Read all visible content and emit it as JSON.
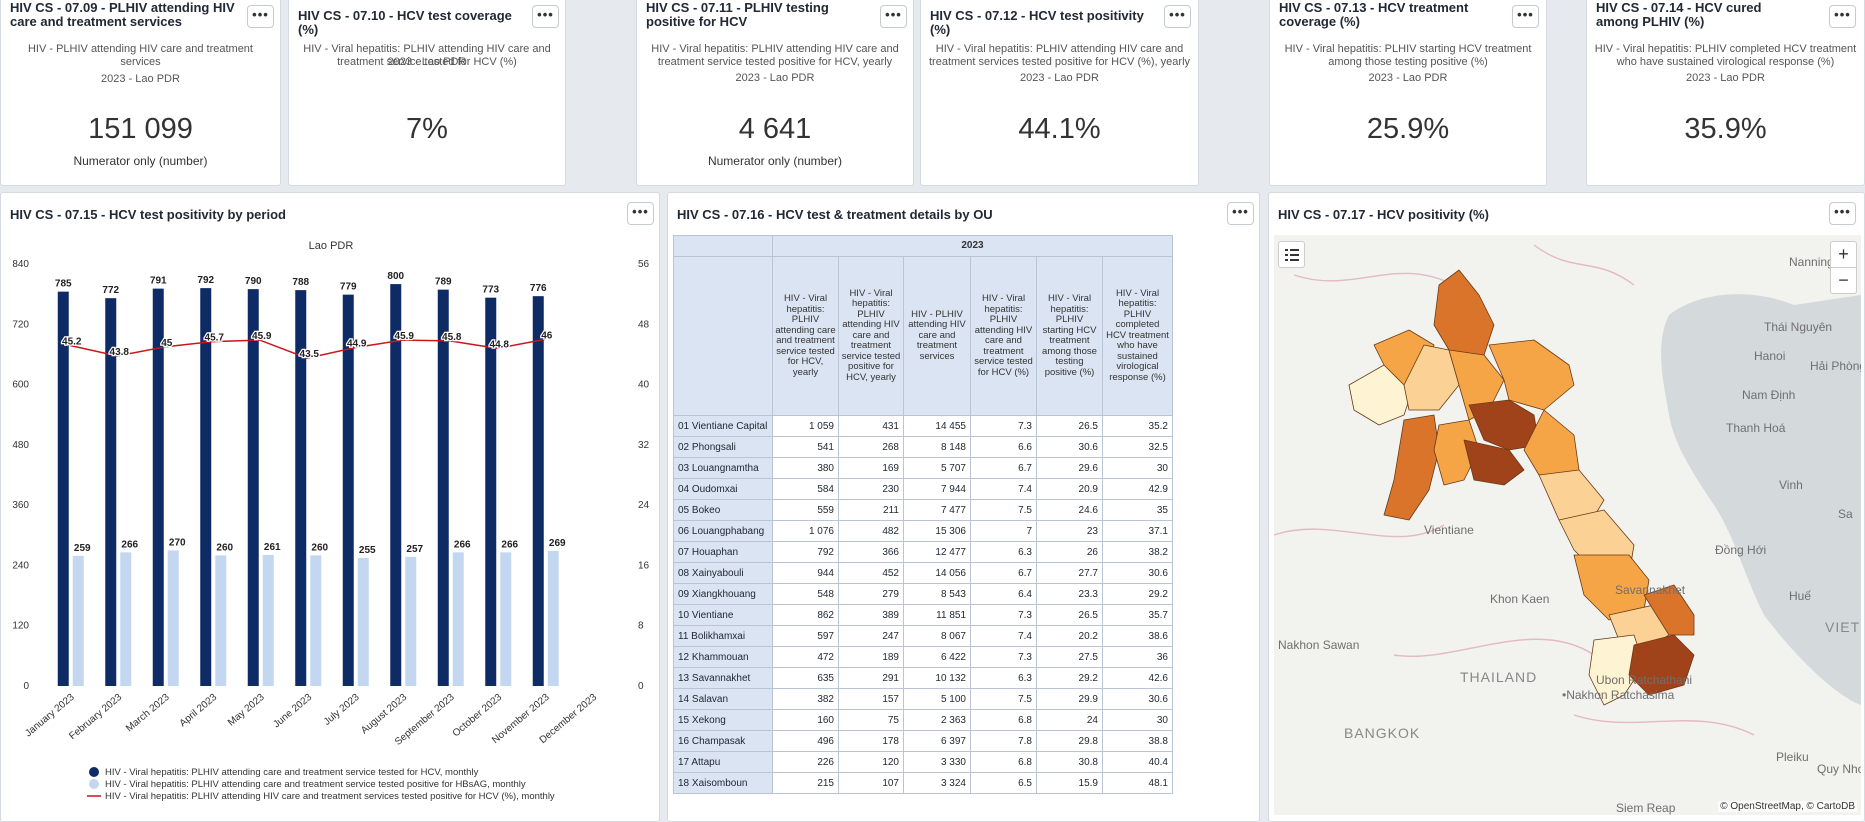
{
  "more_label": "•••",
  "kpis": [
    {
      "title": "HIV CS - 07.09 - PLHIV attending HIV care and treatment services",
      "subtitle": "HIV - PLHIV attending HIV care and treatment services",
      "period": "2023 - Lao PDR",
      "value": "151 099",
      "note": "Numerator only (number)"
    },
    {
      "title": "HIV CS - 07.10 - HCV test coverage (%)",
      "subtitle": "HIV - Viral hepatitis: PLHIV attending HIV care and treatment service tested for HCV (%)",
      "period": "2023 - Lao PDR",
      "value": "7%",
      "note": ""
    },
    {
      "title": "HIV CS - 07.11 - PLHIV testing positive for HCV",
      "subtitle": "HIV - Viral hepatitis: PLHIV attending HIV care and treatment service tested positive for HCV, yearly",
      "period": "2023 - Lao PDR",
      "value": "4 641",
      "note": "Numerator only (number)"
    },
    {
      "title": "HIV CS - 07.12 - HCV test positivity (%)",
      "subtitle": "HIV - Viral hepatitis: PLHIV attending HIV care and treatment services tested positive for HCV (%), yearly",
      "period": "2023 - Lao PDR",
      "value": "44.1%",
      "note": ""
    },
    {
      "title": "HIV CS - 07.13 - HCV treatment coverage (%)",
      "subtitle": "HIV - Viral hepatitis: PLHIV starting HCV treatment among those testing positive (%)",
      "period": "2023 - Lao PDR",
      "value": "25.9%",
      "note": ""
    },
    {
      "title": "HIV CS - 07.14 - HCV cured among PLHIV (%)",
      "subtitle": "HIV - Viral hepatitis: PLHIV completed HCV treatment who have sustained virological response (%)",
      "period": "2023 - Lao PDR",
      "value": "35.9%",
      "note": ""
    }
  ],
  "chart_panel": {
    "title": "HIV CS - 07.15 - HCV test positivity by period"
  },
  "table_panel": {
    "title": "HIV CS - 07.16 - HCV test & treatment details by OU",
    "year": "2023",
    "columns": [
      "HIV - Viral hepatitis: PLHIV attending care and treatment service tested for HCV, yearly",
      "HIV - Viral hepatitis: PLHIV attending HIV care and treatment service tested positive for HCV, yearly",
      "HIV - PLHIV attending HIV care and treatment services",
      "HIV - Viral hepatitis: PLHIV attending HIV care and treatment service tested for HCV (%)",
      "HIV - Viral hepatitis: PLHIV starting HCV treatment among those testing positive (%)",
      "HIV - Viral hepatitis: PLHIV completed HCV treatment who have sustained virological response (%)"
    ],
    "rows": [
      {
        "ou": "01 Vientiane Capital",
        "v": [
          "1 059",
          "431",
          "14 455",
          "7.3",
          "26.5",
          "35.2"
        ]
      },
      {
        "ou": "02 Phongsali",
        "v": [
          "541",
          "268",
          "8 148",
          "6.6",
          "30.6",
          "32.5"
        ]
      },
      {
        "ou": "03 Louangnamtha",
        "v": [
          "380",
          "169",
          "5 707",
          "6.7",
          "29.6",
          "30"
        ]
      },
      {
        "ou": "04 Oudomxai",
        "v": [
          "584",
          "230",
          "7 944",
          "7.4",
          "20.9",
          "42.9"
        ]
      },
      {
        "ou": "05 Bokeo",
        "v": [
          "559",
          "211",
          "7 477",
          "7.5",
          "24.6",
          "35"
        ]
      },
      {
        "ou": "06 Louangphabang",
        "v": [
          "1 076",
          "482",
          "15 306",
          "7",
          "23",
          "37.1"
        ]
      },
      {
        "ou": "07 Houaphan",
        "v": [
          "792",
          "366",
          "12 477",
          "6.3",
          "26",
          "38.2"
        ]
      },
      {
        "ou": "08 Xainyabouli",
        "v": [
          "944",
          "452",
          "14 056",
          "6.7",
          "27.7",
          "30.6"
        ]
      },
      {
        "ou": "09 Xiangkhouang",
        "v": [
          "548",
          "279",
          "8 543",
          "6.4",
          "23.3",
          "29.2"
        ]
      },
      {
        "ou": "10 Vientiane",
        "v": [
          "862",
          "389",
          "11 851",
          "7.3",
          "26.5",
          "35.7"
        ]
      },
      {
        "ou": "11 Bolikhamxai",
        "v": [
          "597",
          "247",
          "8 067",
          "7.4",
          "20.2",
          "38.6"
        ]
      },
      {
        "ou": "12 Khammouan",
        "v": [
          "472",
          "189",
          "6 422",
          "7.3",
          "27.5",
          "36"
        ]
      },
      {
        "ou": "13 Savannakhet",
        "v": [
          "635",
          "291",
          "10 132",
          "6.3",
          "29.2",
          "42.6"
        ]
      },
      {
        "ou": "14 Salavan",
        "v": [
          "382",
          "157",
          "5 100",
          "7.5",
          "29.9",
          "30.6"
        ]
      },
      {
        "ou": "15 Xekong",
        "v": [
          "160",
          "75",
          "2 363",
          "6.8",
          "24",
          "30"
        ]
      },
      {
        "ou": "16 Champasak",
        "v": [
          "496",
          "178",
          "6 397",
          "7.8",
          "29.8",
          "38.8"
        ]
      },
      {
        "ou": "17 Attapu",
        "v": [
          "226",
          "120",
          "3 330",
          "6.8",
          "30.8",
          "40.4"
        ]
      },
      {
        "ou": "18 Xaisomboun",
        "v": [
          "215",
          "107",
          "3 324",
          "6.5",
          "15.9",
          "48.1"
        ]
      }
    ]
  },
  "map_panel": {
    "title": "HIV CS - 07.17 - HCV positivity (%)",
    "zoom_in": "+",
    "zoom_out": "−",
    "attribution": "© OpenStreetMap, © CartoDB",
    "labels": [
      "Nanning·",
      "Thái Nguyên",
      "Hanoi",
      "Hải Phòng",
      "Nam Định",
      "Thanh Hoá",
      "Vinh",
      "Đồng Hới",
      "Huế",
      "VIETNAM",
      "Savannakhet",
      "Khon Kaen",
      "Nakhon Sawan",
      "THAILAND",
      "Ubon Ratchathani",
      "•Nakhon Ratchasima",
      "BANGKOK",
      "Pleiku",
      "Quy Nhơn",
      "Siem Reap",
      "Vientiane",
      "Sa"
    ],
    "colors": {
      "dark": "#a0431a",
      "mid_dark": "#d9742a",
      "mid": "#f5a546",
      "light": "#fbd196",
      "lightest": "#fef3d2"
    }
  },
  "chart_data": {
    "type": "bar",
    "title": "Lao PDR",
    "categories": [
      "January 2023",
      "February 2023",
      "March 2023",
      "April 2023",
      "May 2023",
      "June 2023",
      "July 2023",
      "August 2023",
      "September 2023",
      "October 2023",
      "November 2023",
      "December 2023"
    ],
    "series": [
      {
        "name": "HIV - Viral hepatitis: PLHIV attending care and treatment service tested for HCV, monthly",
        "type": "bar",
        "axis": "left",
        "color": "#0f2b66",
        "values": [
          785,
          772,
          791,
          792,
          790,
          788,
          779,
          800,
          789,
          773,
          776,
          null
        ]
      },
      {
        "name": "HIV - Viral hepatitis: PLHIV attending care and treatment service tested positive for HBsAG, monthly",
        "type": "bar",
        "axis": "left",
        "color": "#c3d8f0",
        "values": [
          259,
          266,
          270,
          260,
          261,
          260,
          255,
          257,
          266,
          266,
          269,
          null
        ]
      },
      {
        "name": "HIV - Viral hepatitis: PLHIV attending HIV care and treatment services tested positive for HCV (%), monthly",
        "type": "line",
        "axis": "right",
        "color": "#c8161d",
        "values": [
          45.2,
          43.8,
          45,
          45.7,
          45.9,
          43.5,
          44.9,
          45.9,
          45.8,
          44.8,
          46,
          null
        ]
      }
    ],
    "ylim": [
      0,
      840
    ],
    "yticks": [
      0,
      120,
      240,
      360,
      480,
      600,
      720,
      840
    ],
    "y2lim": [
      0,
      56
    ],
    "y2ticks": [
      0,
      8,
      16,
      24,
      32,
      40,
      48,
      56
    ],
    "legend_position": "bottom"
  }
}
